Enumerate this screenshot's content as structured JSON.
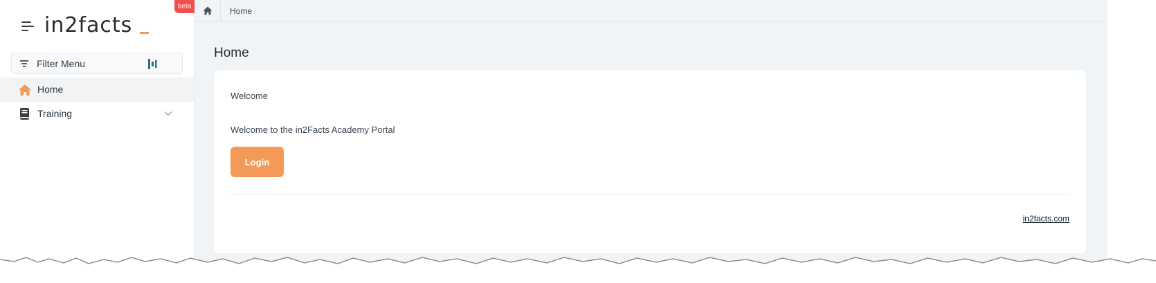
{
  "sidebar": {
    "logo_text": "in2facts",
    "beta_badge": "beta",
    "filter_label": "Filter Menu",
    "items": [
      {
        "label": "Home",
        "icon": "home-icon",
        "active": true
      },
      {
        "label": "Training",
        "icon": "book-icon",
        "active": false
      }
    ]
  },
  "breadcrumb": {
    "current": "Home"
  },
  "main": {
    "title": "Home",
    "card": {
      "heading": "Welcome",
      "text": "Welcome to the in2Facts Academy Portal",
      "login_label": "Login",
      "footer_link": "in2facts.com"
    }
  },
  "colors": {
    "accent": "#f39a58",
    "beta": "#ef4f4f",
    "background": "#f1f4f7"
  }
}
